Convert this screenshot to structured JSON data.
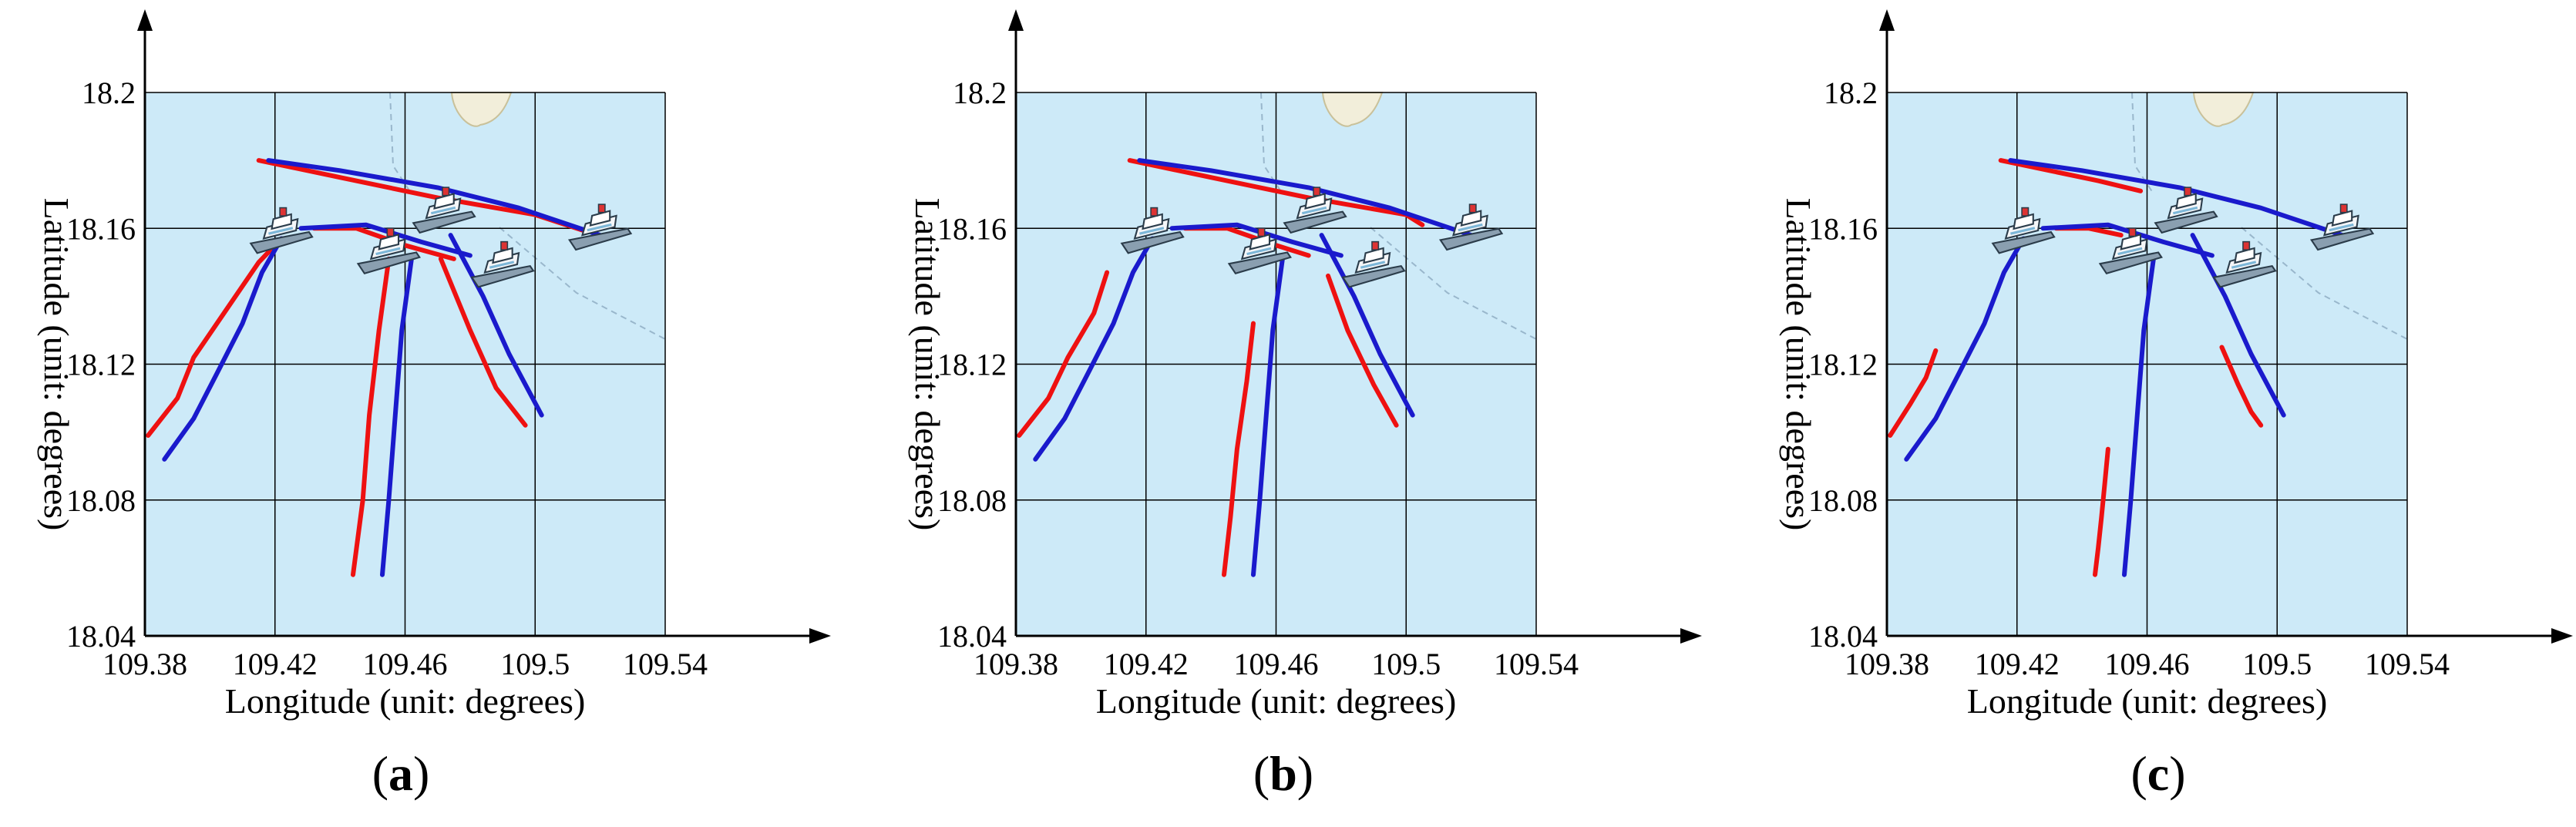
{
  "figure": {
    "panels": [
      {
        "label_letter": "a",
        "label_open": "(",
        "label_close": ")"
      },
      {
        "label_letter": "b",
        "label_open": "(",
        "label_close": ")"
      },
      {
        "label_letter": "c",
        "label_open": "(",
        "label_close": ")"
      }
    ]
  },
  "colors": {
    "map_water": "#cdeaf8",
    "grid": "#000000",
    "predicted": "#ee1111",
    "ground_truth": "#1a1acc",
    "land": "#f2eeda"
  },
  "chart_data": [
    {
      "type": "line",
      "panel": "a",
      "xlabel": "Longitude (unit: degrees)",
      "ylabel": "Latitude (unit: degrees)",
      "xlim": [
        109.38,
        109.54
      ],
      "ylim": [
        18.04,
        18.2
      ],
      "xticks": [
        "109.38",
        "109.42",
        "109.46",
        "109.5",
        "109.54"
      ],
      "yticks": [
        "18.04",
        "18.08",
        "18.12",
        "18.16",
        "18.2"
      ],
      "grid": true,
      "background": "map",
      "icons": [
        "ship-icon",
        "ship-icon",
        "ship-icon",
        "ship-icon",
        "ship-icon"
      ],
      "ships": [
        [
          109.422,
          18.157
        ],
        [
          109.455,
          18.151
        ],
        [
          109.472,
          18.163
        ],
        [
          109.49,
          18.147
        ],
        [
          109.52,
          18.158
        ]
      ],
      "series": [
        {
          "color": "predicted",
          "values": [
            [
              109.381,
              18.099
            ],
            [
              109.39,
              18.11
            ],
            [
              109.395,
              18.122
            ],
            [
              109.405,
              18.136
            ],
            [
              109.415,
              18.15
            ],
            [
              109.422,
              18.157
            ]
          ]
        },
        {
          "color": "ground_truth",
          "values": [
            [
              109.386,
              18.092
            ],
            [
              109.395,
              18.104
            ],
            [
              109.402,
              18.117
            ],
            [
              109.41,
              18.132
            ],
            [
              109.416,
              18.147
            ],
            [
              109.422,
              18.157
            ]
          ]
        },
        {
          "color": "predicted",
          "values": [
            [
              109.415,
              18.18
            ],
            [
              109.44,
              18.175
            ],
            [
              109.47,
              18.169
            ],
            [
              109.5,
              18.164
            ],
            [
              109.516,
              18.159
            ]
          ]
        },
        {
          "color": "ground_truth",
          "values": [
            [
              109.418,
              18.18
            ],
            [
              109.44,
              18.177
            ],
            [
              109.47,
              18.172
            ],
            [
              109.495,
              18.166
            ],
            [
              109.52,
              18.158
            ]
          ]
        },
        {
          "color": "predicted",
          "values": [
            [
              109.432,
              18.16
            ],
            [
              109.445,
              18.16
            ],
            [
              109.46,
              18.155
            ],
            [
              109.475,
              18.151
            ]
          ]
        },
        {
          "color": "ground_truth",
          "values": [
            [
              109.428,
              18.16
            ],
            [
              109.448,
              18.161
            ],
            [
              109.465,
              18.156
            ],
            [
              109.48,
              18.152
            ]
          ]
        },
        {
          "color": "predicted",
          "values": [
            [
              109.455,
              18.151
            ],
            [
              109.452,
              18.13
            ],
            [
              109.449,
              18.105
            ],
            [
              109.447,
              18.08
            ],
            [
              109.444,
              18.058
            ]
          ]
        },
        {
          "color": "ground_truth",
          "values": [
            [
              109.462,
              18.151
            ],
            [
              109.459,
              18.13
            ],
            [
              109.457,
              18.105
            ],
            [
              109.455,
              18.08
            ],
            [
              109.453,
              18.058
            ]
          ]
        },
        {
          "color": "predicted",
          "values": [
            [
              109.471,
              18.151
            ],
            [
              109.48,
              18.13
            ],
            [
              109.488,
              18.113
            ],
            [
              109.497,
              18.102
            ]
          ]
        },
        {
          "color": "ground_truth",
          "values": [
            [
              109.474,
              18.158
            ],
            [
              109.484,
              18.14
            ],
            [
              109.492,
              18.123
            ],
            [
              109.502,
              18.105
            ]
          ]
        }
      ]
    },
    {
      "type": "line",
      "panel": "b",
      "xlabel": "Longitude (unit: degrees)",
      "ylabel": "Latitude (unit: degrees)",
      "xlim": [
        109.38,
        109.54
      ],
      "ylim": [
        18.04,
        18.2
      ],
      "xticks": [
        "109.38",
        "109.42",
        "109.46",
        "109.5",
        "109.54"
      ],
      "yticks": [
        "18.04",
        "18.08",
        "18.12",
        "18.16",
        "18.2"
      ],
      "grid": true,
      "background": "map",
      "icons": [
        "ship-icon",
        "ship-icon",
        "ship-icon",
        "ship-icon",
        "ship-icon"
      ],
      "ships": [
        [
          109.422,
          18.157
        ],
        [
          109.455,
          18.151
        ],
        [
          109.472,
          18.163
        ],
        [
          109.49,
          18.147
        ],
        [
          109.52,
          18.158
        ]
      ],
      "series": [
        {
          "color": "predicted",
          "values": [
            [
              109.381,
              18.099
            ],
            [
              109.39,
              18.11
            ],
            [
              109.396,
              18.122
            ],
            [
              109.404,
              18.135
            ],
            [
              109.408,
              18.147
            ]
          ]
        },
        {
          "color": "ground_truth",
          "values": [
            [
              109.386,
              18.092
            ],
            [
              109.395,
              18.104
            ],
            [
              109.402,
              18.117
            ],
            [
              109.41,
              18.132
            ],
            [
              109.416,
              18.147
            ],
            [
              109.422,
              18.157
            ]
          ]
        },
        {
          "color": "predicted",
          "values": [
            [
              109.415,
              18.18
            ],
            [
              109.44,
              18.175
            ],
            [
              109.47,
              18.169
            ],
            [
              109.5,
              18.164
            ],
            [
              109.505,
              18.161
            ]
          ]
        },
        {
          "color": "ground_truth",
          "values": [
            [
              109.418,
              18.18
            ],
            [
              109.44,
              18.177
            ],
            [
              109.47,
              18.172
            ],
            [
              109.495,
              18.166
            ],
            [
              109.52,
              18.158
            ]
          ]
        },
        {
          "color": "predicted",
          "values": [
            [
              109.432,
              18.16
            ],
            [
              109.445,
              18.16
            ],
            [
              109.46,
              18.155
            ],
            [
              109.47,
              18.152
            ]
          ]
        },
        {
          "color": "ground_truth",
          "values": [
            [
              109.428,
              18.16
            ],
            [
              109.448,
              18.161
            ],
            [
              109.465,
              18.156
            ],
            [
              109.48,
              18.152
            ]
          ]
        },
        {
          "color": "predicted",
          "values": [
            [
              109.453,
              18.132
            ],
            [
              109.451,
              18.115
            ],
            [
              109.448,
              18.095
            ],
            [
              109.446,
              18.075
            ],
            [
              109.444,
              18.058
            ]
          ]
        },
        {
          "color": "ground_truth",
          "values": [
            [
              109.462,
              18.151
            ],
            [
              109.459,
              18.13
            ],
            [
              109.457,
              18.105
            ],
            [
              109.455,
              18.08
            ],
            [
              109.453,
              18.058
            ]
          ]
        },
        {
          "color": "predicted",
          "values": [
            [
              109.476,
              18.146
            ],
            [
              109.482,
              18.13
            ],
            [
              109.49,
              18.114
            ],
            [
              109.497,
              18.102
            ]
          ]
        },
        {
          "color": "ground_truth",
          "values": [
            [
              109.474,
              18.158
            ],
            [
              109.484,
              18.14
            ],
            [
              109.492,
              18.123
            ],
            [
              109.502,
              18.105
            ]
          ]
        }
      ]
    },
    {
      "type": "line",
      "panel": "c",
      "xlabel": "Longitude (unit: degrees)",
      "ylabel": "Latitude (unit: degrees)",
      "xlim": [
        109.38,
        109.54
      ],
      "ylim": [
        18.04,
        18.2
      ],
      "xticks": [
        "109.38",
        "109.42",
        "109.46",
        "109.5",
        "109.54"
      ],
      "yticks": [
        "18.04",
        "18.08",
        "18.12",
        "18.16",
        "18.2"
      ],
      "grid": true,
      "background": "map",
      "icons": [
        "ship-icon",
        "ship-icon",
        "ship-icon",
        "ship-icon",
        "ship-icon"
      ],
      "ships": [
        [
          109.422,
          18.157
        ],
        [
          109.455,
          18.151
        ],
        [
          109.472,
          18.163
        ],
        [
          109.49,
          18.147
        ],
        [
          109.52,
          18.158
        ]
      ],
      "series": [
        {
          "color": "predicted",
          "values": [
            [
              109.381,
              18.099
            ],
            [
              109.387,
              18.108
            ],
            [
              109.392,
              18.116
            ],
            [
              109.395,
              18.124
            ]
          ]
        },
        {
          "color": "ground_truth",
          "values": [
            [
              109.386,
              18.092
            ],
            [
              109.395,
              18.104
            ],
            [
              109.402,
              18.117
            ],
            [
              109.41,
              18.132
            ],
            [
              109.416,
              18.147
            ],
            [
              109.422,
              18.157
            ]
          ]
        },
        {
          "color": "predicted",
          "values": [
            [
              109.415,
              18.18
            ],
            [
              109.43,
              18.177
            ],
            [
              109.445,
              18.174
            ],
            [
              109.458,
              18.171
            ]
          ]
        },
        {
          "color": "ground_truth",
          "values": [
            [
              109.418,
              18.18
            ],
            [
              109.44,
              18.177
            ],
            [
              109.47,
              18.172
            ],
            [
              109.495,
              18.166
            ],
            [
              109.52,
              18.158
            ]
          ]
        },
        {
          "color": "predicted",
          "values": [
            [
              109.432,
              18.16
            ],
            [
              109.442,
              18.16
            ],
            [
              109.452,
              18.158
            ]
          ]
        },
        {
          "color": "ground_truth",
          "values": [
            [
              109.428,
              18.16
            ],
            [
              109.448,
              18.161
            ],
            [
              109.465,
              18.156
            ],
            [
              109.48,
              18.152
            ]
          ]
        },
        {
          "color": "predicted",
          "values": [
            [
              109.448,
              18.095
            ],
            [
              109.447,
              18.085
            ],
            [
              109.446,
              18.075
            ],
            [
              109.445,
              18.066
            ],
            [
              109.444,
              18.058
            ]
          ]
        },
        {
          "color": "ground_truth",
          "values": [
            [
              109.462,
              18.151
            ],
            [
              109.459,
              18.13
            ],
            [
              109.457,
              18.105
            ],
            [
              109.455,
              18.08
            ],
            [
              109.453,
              18.058
            ]
          ]
        },
        {
          "color": "predicted",
          "values": [
            [
              109.483,
              18.125
            ],
            [
              109.488,
              18.114
            ],
            [
              109.492,
              18.106
            ],
            [
              109.495,
              18.102
            ]
          ]
        },
        {
          "color": "ground_truth",
          "values": [
            [
              109.474,
              18.158
            ],
            [
              109.484,
              18.14
            ],
            [
              109.492,
              18.123
            ],
            [
              109.502,
              18.105
            ]
          ]
        }
      ]
    }
  ]
}
